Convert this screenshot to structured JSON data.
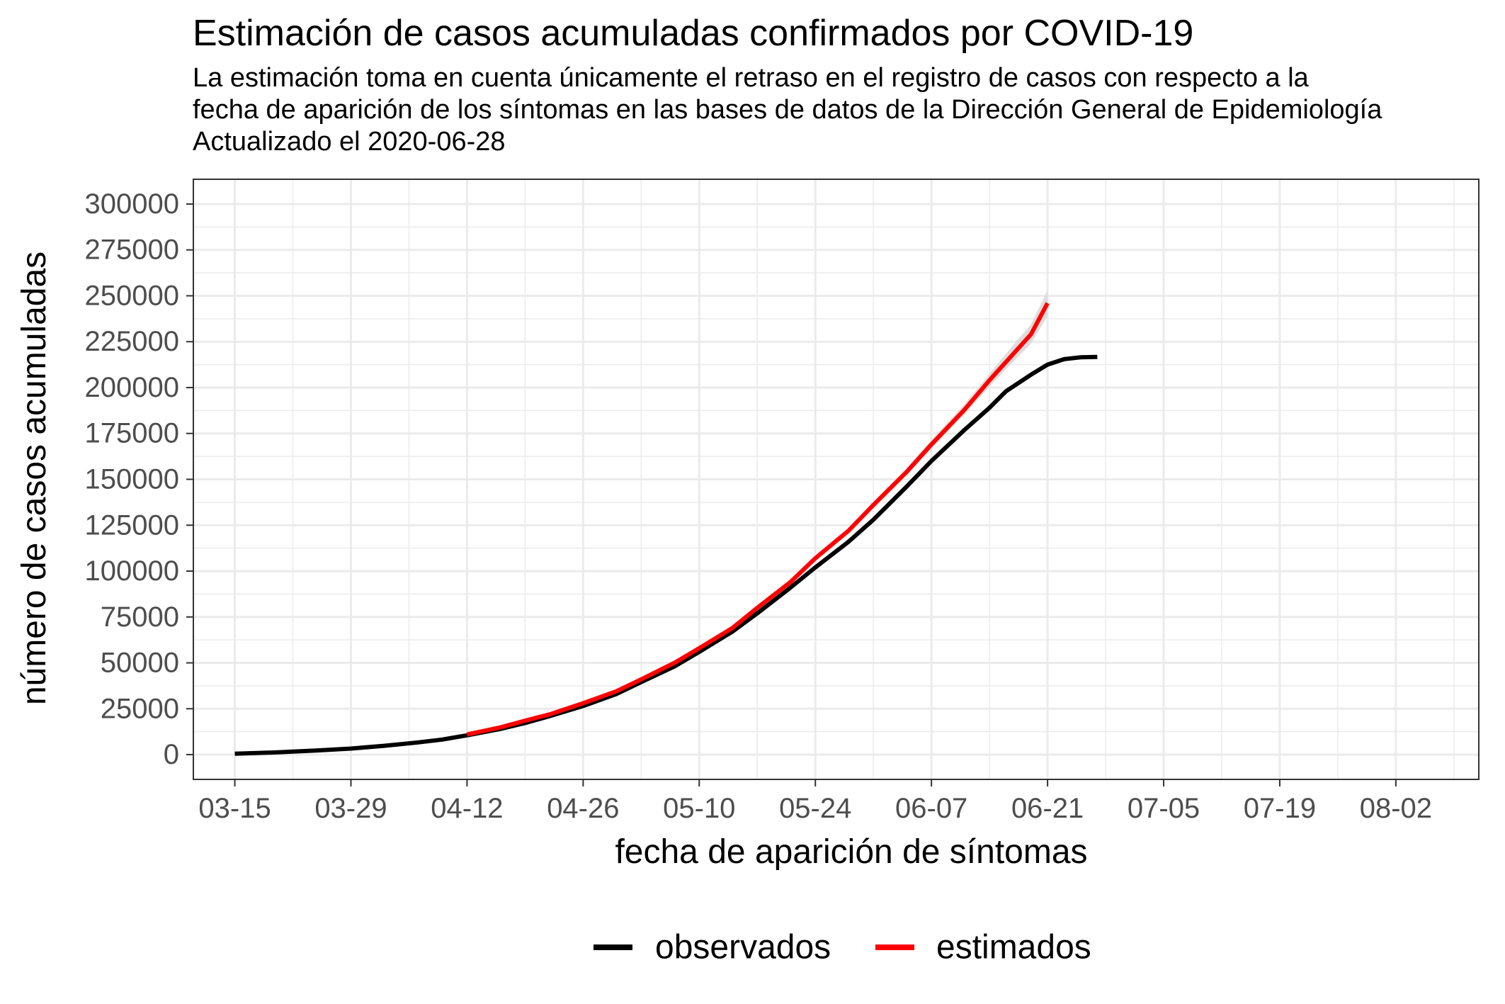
{
  "chart_data": {
    "type": "line",
    "title": "Estimación de casos acumuladas confirmados por COVID-19",
    "subtitle_lines": [
      "La estimación toma en cuenta únicamente el retraso en el registro de casos con respecto a la",
      "fecha de aparición de los síntomas en las bases de datos de la Dirección General de Epidemiología",
      "Actualizado el 2020-06-28"
    ],
    "xlabel": "fecha de aparición de síntomas",
    "ylabel": "número de casos acumuladas",
    "x_tick_labels": [
      "03-15",
      "03-29",
      "04-12",
      "04-26",
      "05-10",
      "05-24",
      "06-07",
      "06-21",
      "07-05",
      "07-19",
      "08-02"
    ],
    "x_tick_dates": [
      "2020-03-15",
      "2020-03-29",
      "2020-04-12",
      "2020-04-26",
      "2020-05-10",
      "2020-05-24",
      "2020-06-07",
      "2020-06-21",
      "2020-07-05",
      "2020-07-19",
      "2020-08-02"
    ],
    "y_tick_labels": [
      "0",
      "25000",
      "50000",
      "75000",
      "100000",
      "125000",
      "150000",
      "175000",
      "200000",
      "225000",
      "250000",
      "275000",
      "300000"
    ],
    "xlim": [
      "2020-03-10",
      "2020-08-12"
    ],
    "ylim": [
      -13500,
      313500
    ],
    "grid": true,
    "legend_position": "bottom",
    "colors": {
      "observados": "#000000",
      "estimados": "#ff0000",
      "ribbon": "#d9d9d9",
      "grid": "#ebebeb",
      "frame": "#333333"
    },
    "series": [
      {
        "name": "observados",
        "color": "#000000",
        "points": [
          [
            "2020-03-15",
            500
          ],
          [
            "2020-03-20",
            1200
          ],
          [
            "2020-03-25",
            2300
          ],
          [
            "2020-03-29",
            3300
          ],
          [
            "2020-04-02",
            4800
          ],
          [
            "2020-04-06",
            6600
          ],
          [
            "2020-04-09",
            8200
          ],
          [
            "2020-04-12",
            10500
          ],
          [
            "2020-04-16",
            14000
          ],
          [
            "2020-04-19",
            17200
          ],
          [
            "2020-04-22",
            21000
          ],
          [
            "2020-04-26",
            26500
          ],
          [
            "2020-04-30",
            33000
          ],
          [
            "2020-05-03",
            39500
          ],
          [
            "2020-05-07",
            48000
          ],
          [
            "2020-05-10",
            56000
          ],
          [
            "2020-05-14",
            67000
          ],
          [
            "2020-05-17",
            77000
          ],
          [
            "2020-05-21",
            91000
          ],
          [
            "2020-05-24",
            102000
          ],
          [
            "2020-05-28",
            116000
          ],
          [
            "2020-05-31",
            128000
          ],
          [
            "2020-06-04",
            146000
          ],
          [
            "2020-06-07",
            160000
          ],
          [
            "2020-06-11",
            177000
          ],
          [
            "2020-06-14",
            189000
          ],
          [
            "2020-06-16",
            198000
          ],
          [
            "2020-06-19",
            207000
          ],
          [
            "2020-06-21",
            212500
          ],
          [
            "2020-06-23",
            215500
          ],
          [
            "2020-06-25",
            216500
          ],
          [
            "2020-06-27",
            216700
          ]
        ]
      },
      {
        "name": "estimados",
        "color": "#ff0000",
        "points": [
          [
            "2020-04-12",
            11000
          ],
          [
            "2020-04-16",
            14800
          ],
          [
            "2020-04-19",
            18500
          ],
          [
            "2020-04-22",
            22000
          ],
          [
            "2020-04-26",
            28000
          ],
          [
            "2020-04-30",
            34500
          ],
          [
            "2020-05-03",
            41000
          ],
          [
            "2020-05-07",
            50000
          ],
          [
            "2020-05-10",
            58000
          ],
          [
            "2020-05-14",
            69000
          ],
          [
            "2020-05-17",
            80000
          ],
          [
            "2020-05-21",
            94000
          ],
          [
            "2020-05-24",
            107000
          ],
          [
            "2020-05-28",
            122000
          ],
          [
            "2020-05-31",
            136000
          ],
          [
            "2020-06-04",
            154000
          ],
          [
            "2020-06-07",
            169000
          ],
          [
            "2020-06-11",
            188000
          ],
          [
            "2020-06-14",
            204000
          ],
          [
            "2020-06-16",
            214000
          ],
          [
            "2020-06-19",
            229000
          ],
          [
            "2020-06-21",
            246000
          ]
        ],
        "ribbon": [
          [
            "2020-06-04",
            152000,
            156000
          ],
          [
            "2020-06-07",
            167000,
            171500
          ],
          [
            "2020-06-11",
            185500,
            191000
          ],
          [
            "2020-06-14",
            200500,
            207500
          ],
          [
            "2020-06-16",
            210000,
            218500
          ],
          [
            "2020-06-19",
            224000,
            234500
          ],
          [
            "2020-06-21",
            239000,
            253000
          ]
        ]
      }
    ]
  }
}
